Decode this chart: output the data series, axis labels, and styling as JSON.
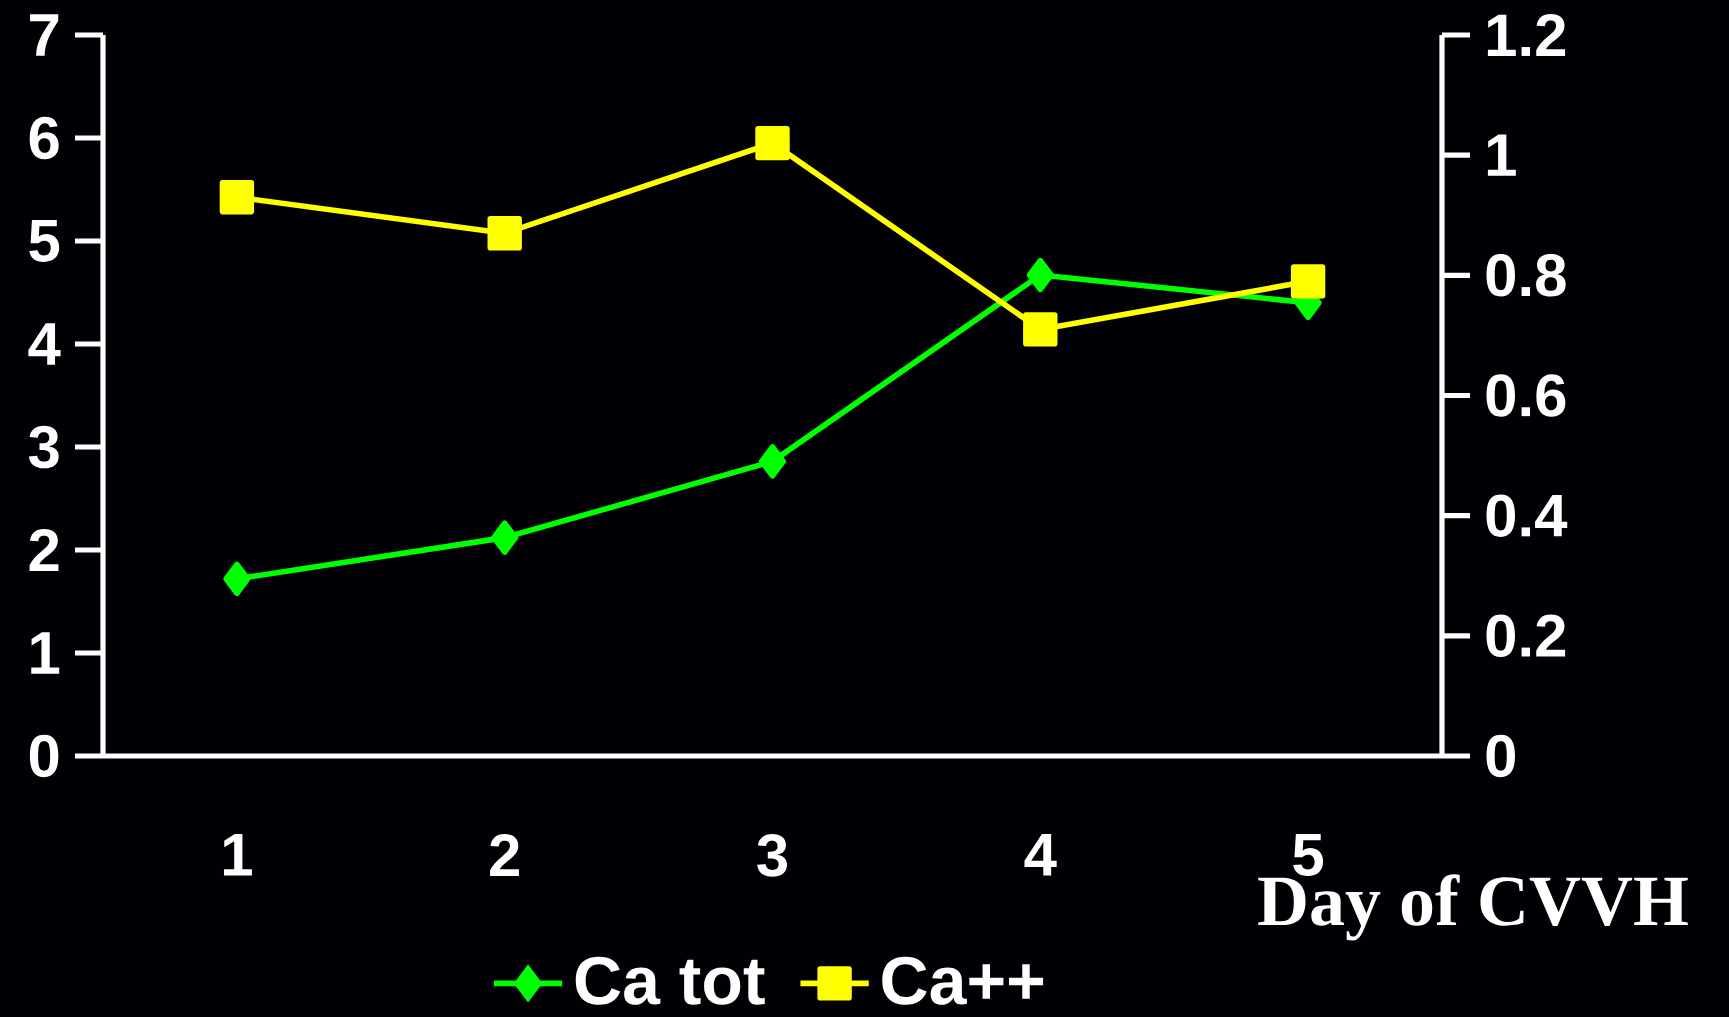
{
  "chart_data": {
    "type": "line",
    "xlabel": "Day of CVVH",
    "categories": [
      "1",
      "2",
      "3",
      "4",
      "5"
    ],
    "ylim": [
      0,
      7
    ],
    "yticks": [
      0,
      1,
      2,
      3,
      4,
      5,
      6,
      7
    ],
    "y2lim": [
      0,
      1.2
    ],
    "y2ticks": [
      0,
      0.2,
      0.4,
      0.6,
      0.8,
      1,
      1.2
    ],
    "legend": "bottom",
    "line_style": "solid",
    "series": [
      {
        "name": "Ca tot",
        "color": "#00ff00",
        "marker": "diamond",
        "values": [
          1.72,
          2.12,
          2.86,
          4.67,
          4.4
        ]
      },
      {
        "name": "Ca++",
        "color": "#ffff00",
        "marker": "square",
        "axis": "y2",
        "values": [
          0.93,
          0.87,
          1.02,
          0.71,
          0.79
        ]
      }
    ]
  }
}
